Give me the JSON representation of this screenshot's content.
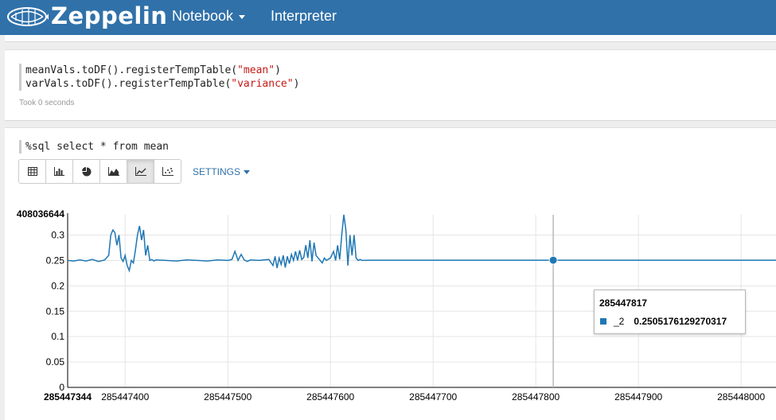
{
  "navbar": {
    "brand": "Zeppelin",
    "items": [
      {
        "label": "Notebook",
        "has_dropdown": true
      },
      {
        "label": "Interpreter",
        "has_dropdown": false
      }
    ],
    "color": "#3071a9"
  },
  "paragraph1": {
    "code_lines": [
      {
        "prefix": "meanVals.toDF().registerTempTable(",
        "string": "\"mean\"",
        "suffix": ")"
      },
      {
        "prefix": "varVals.toDF().registerTempTable(",
        "string": "\"variance\"",
        "suffix": ")"
      }
    ],
    "status": "Took 0 seconds"
  },
  "paragraph2": {
    "code": "%sql select * from mean",
    "toolbar": {
      "buttons": [
        {
          "name": "table",
          "icon": "table-icon",
          "active": false
        },
        {
          "name": "bar",
          "icon": "bar-chart-icon",
          "active": false
        },
        {
          "name": "pie",
          "icon": "pie-chart-icon",
          "active": false
        },
        {
          "name": "area",
          "icon": "area-chart-icon",
          "active": false
        },
        {
          "name": "line",
          "icon": "line-chart-icon",
          "active": true
        },
        {
          "name": "scatter",
          "icon": "scatter-chart-icon",
          "active": false
        }
      ],
      "settings_label": "SETTINGS"
    }
  },
  "chart_data": {
    "type": "line",
    "title": "",
    "xlabel": "",
    "ylabel": "",
    "xlim": [
      285447344,
      285448034
    ],
    "ylim": [
      0,
      0.34
    ],
    "x_ticks": [
      285447400,
      285447500,
      285447600,
      285447700,
      285447800,
      285447900,
      285448000
    ],
    "x_tick_labels": [
      "285447400",
      "285447500",
      "285447600",
      "285447700",
      "285447800",
      "285447900",
      "285448000"
    ],
    "x_min_label": "285447344",
    "y_ticks": [
      0,
      0.05,
      0.1,
      0.15,
      0.2,
      0.25,
      0.3
    ],
    "y_tick_labels": [
      "0",
      "0.05",
      "0.1",
      "0.15",
      "0.2",
      "0.25",
      "0.3"
    ],
    "y_max_label": "408036644",
    "grid": true,
    "legend": "none",
    "color": "#1f77b4",
    "series": [
      {
        "name": "_2",
        "x": [
          285447344,
          285447350,
          285447356,
          285447362,
          285447368,
          285447374,
          285447380,
          285447384,
          285447386,
          285447388,
          285447390,
          285447392,
          285447394,
          285447396,
          285447398,
          285447400,
          285447402,
          285447404,
          285447406,
          285447408,
          285447410,
          285447412,
          285447414,
          285447416,
          285447418,
          285447420,
          285447422,
          285447424,
          285447426,
          285447428,
          285447430,
          285447440,
          285447450,
          285447460,
          285447470,
          285447480,
          285447490,
          285447500,
          285447504,
          285447507,
          285447510,
          285447513,
          285447516,
          285447519,
          285447522,
          285447530,
          285447540,
          285447544,
          285447546,
          285447548,
          285447550,
          285447552,
          285447554,
          285447556,
          285447558,
          285447560,
          285447562,
          285447564,
          285447566,
          285447568,
          285447570,
          285447572,
          285447574,
          285447576,
          285447578,
          285447580,
          285447582,
          285447584,
          285447586,
          285447588,
          285447590,
          285447592,
          285447594,
          285447596,
          285447600,
          285447603,
          285447605,
          285447607,
          285447609,
          285447611,
          285447613,
          285447615,
          285447617,
          285447619,
          285447621,
          285447623,
          285447625,
          285447627,
          285447629,
          285447631,
          285447640,
          285447660,
          285447700,
          285447750,
          285447800,
          285447850,
          285447900,
          285447950,
          285448000,
          285448034
        ],
        "y": [
          0.25,
          0.249,
          0.251,
          0.249,
          0.252,
          0.248,
          0.251,
          0.26,
          0.3,
          0.31,
          0.305,
          0.28,
          0.3,
          0.255,
          0.248,
          0.26,
          0.24,
          0.23,
          0.25,
          0.245,
          0.27,
          0.3,
          0.318,
          0.29,
          0.31,
          0.26,
          0.28,
          0.25,
          0.252,
          0.249,
          0.251,
          0.25,
          0.249,
          0.251,
          0.25,
          0.249,
          0.251,
          0.25,
          0.252,
          0.268,
          0.25,
          0.262,
          0.251,
          0.248,
          0.251,
          0.25,
          0.252,
          0.24,
          0.258,
          0.235,
          0.255,
          0.242,
          0.26,
          0.236,
          0.258,
          0.244,
          0.262,
          0.25,
          0.268,
          0.25,
          0.27,
          0.252,
          0.256,
          0.28,
          0.255,
          0.29,
          0.248,
          0.285,
          0.26,
          0.255,
          0.25,
          0.245,
          0.255,
          0.25,
          0.255,
          0.268,
          0.25,
          0.28,
          0.252,
          0.3,
          0.34,
          0.31,
          0.24,
          0.3,
          0.26,
          0.3,
          0.255,
          0.25,
          0.252,
          0.25,
          0.2505,
          0.2505,
          0.2505,
          0.2505,
          0.2505,
          0.2505,
          0.2505,
          0.2505,
          0.2505,
          0.2505
        ]
      }
    ],
    "hover": {
      "x_label": "285447817",
      "series": "_2",
      "value": "0.2505176129270317",
      "x": 285447817,
      "y": 0.2505176129270317
    }
  }
}
